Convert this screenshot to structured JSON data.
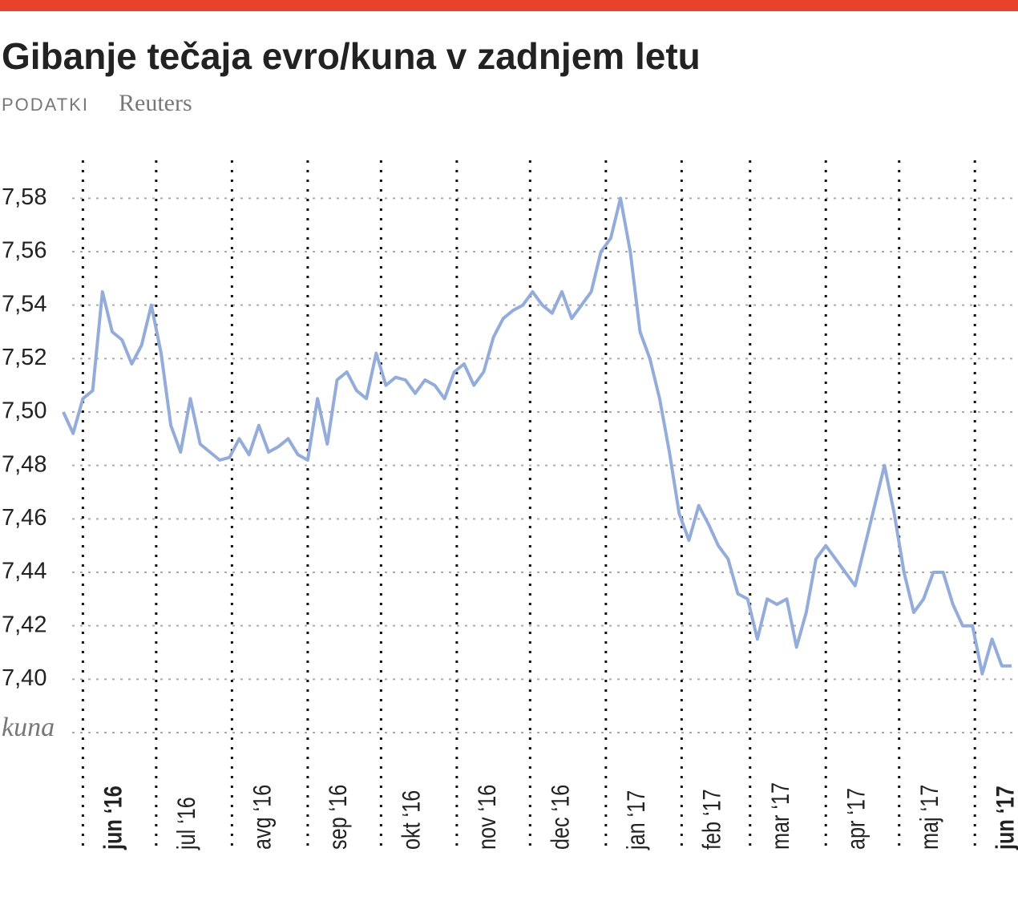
{
  "chart_data": {
    "type": "line",
    "title": "Gibanje tečaja evro/kuna v zadnjem letu",
    "source_label": "PODATKI",
    "source": "Reuters",
    "y_axis_label": "kuna",
    "xlim": [
      "2016-05-24",
      "2017-06-17"
    ],
    "ylim": [
      7.38,
      7.59
    ],
    "yticks": [
      {
        "value": 7.4,
        "label": "7,40"
      },
      {
        "value": 7.42,
        "label": "7,42"
      },
      {
        "value": 7.44,
        "label": "7,44"
      },
      {
        "value": 7.46,
        "label": "7,46"
      },
      {
        "value": 7.48,
        "label": "7,48"
      },
      {
        "value": 7.5,
        "label": "7,50"
      },
      {
        "value": 7.52,
        "label": "7,52"
      },
      {
        "value": 7.54,
        "label": "7,54"
      },
      {
        "value": 7.56,
        "label": "7,56"
      },
      {
        "value": 7.58,
        "label": "7,58"
      }
    ],
    "xticks": [
      {
        "value": "2016-06-01",
        "label": "jun ‘16"
      },
      {
        "value": "2016-07-01",
        "label": "jul ‘16"
      },
      {
        "value": "2016-08-01",
        "label": "avg ‘16"
      },
      {
        "value": "2016-09-01",
        "label": "sep ‘16"
      },
      {
        "value": "2016-10-01",
        "label": "okt ‘16"
      },
      {
        "value": "2016-11-01",
        "label": "nov ‘16"
      },
      {
        "value": "2016-12-01",
        "label": "dec ‘16"
      },
      {
        "value": "2017-01-01",
        "label": "jan ‘17"
      },
      {
        "value": "2017-02-01",
        "label": "feb ‘17"
      },
      {
        "value": "2017-03-01",
        "label": "mar ‘17"
      },
      {
        "value": "2017-04-01",
        "label": "apr ‘17"
      },
      {
        "value": "2017-05-01",
        "label": "maj ‘17"
      },
      {
        "value": "2017-06-01",
        "label": "jun ‘17"
      }
    ],
    "grid": true,
    "series": [
      {
        "name": "evro/kuna",
        "color": "#93acd9",
        "x": [
          "2016-05-24",
          "2016-05-28",
          "2016-06-01",
          "2016-06-05",
          "2016-06-09",
          "2016-06-13",
          "2016-06-17",
          "2016-06-21",
          "2016-06-25",
          "2016-06-29",
          "2016-07-03",
          "2016-07-07",
          "2016-07-11",
          "2016-07-15",
          "2016-07-19",
          "2016-07-23",
          "2016-07-27",
          "2016-07-31",
          "2016-08-04",
          "2016-08-08",
          "2016-08-12",
          "2016-08-16",
          "2016-08-20",
          "2016-08-24",
          "2016-08-28",
          "2016-09-01",
          "2016-09-05",
          "2016-09-09",
          "2016-09-13",
          "2016-09-17",
          "2016-09-21",
          "2016-09-25",
          "2016-09-29",
          "2016-10-03",
          "2016-10-07",
          "2016-10-11",
          "2016-10-15",
          "2016-10-19",
          "2016-10-23",
          "2016-10-27",
          "2016-10-31",
          "2016-11-04",
          "2016-11-08",
          "2016-11-12",
          "2016-11-16",
          "2016-11-20",
          "2016-11-24",
          "2016-11-28",
          "2016-12-02",
          "2016-12-06",
          "2016-12-10",
          "2016-12-14",
          "2016-12-18",
          "2016-12-22",
          "2016-12-26",
          "2016-12-30",
          "2017-01-03",
          "2017-01-07",
          "2017-01-11",
          "2017-01-15",
          "2017-01-19",
          "2017-01-23",
          "2017-01-27",
          "2017-01-31",
          "2017-02-04",
          "2017-02-08",
          "2017-02-12",
          "2017-02-16",
          "2017-02-20",
          "2017-02-24",
          "2017-02-28",
          "2017-03-04",
          "2017-03-08",
          "2017-03-12",
          "2017-03-16",
          "2017-03-20",
          "2017-03-24",
          "2017-03-28",
          "2017-04-01",
          "2017-04-05",
          "2017-04-09",
          "2017-04-13",
          "2017-04-17",
          "2017-04-21",
          "2017-04-25",
          "2017-04-29",
          "2017-05-03",
          "2017-05-07",
          "2017-05-11",
          "2017-05-15",
          "2017-05-19",
          "2017-05-23",
          "2017-05-27",
          "2017-05-31",
          "2017-06-04",
          "2017-06-08",
          "2017-06-12",
          "2017-06-16"
        ],
        "values": [
          7.5,
          7.492,
          7.505,
          7.508,
          7.545,
          7.53,
          7.527,
          7.518,
          7.525,
          7.54,
          7.522,
          7.495,
          7.485,
          7.505,
          7.488,
          7.485,
          7.482,
          7.483,
          7.49,
          7.484,
          7.495,
          7.485,
          7.487,
          7.49,
          7.484,
          7.482,
          7.505,
          7.488,
          7.512,
          7.515,
          7.508,
          7.505,
          7.522,
          7.51,
          7.513,
          7.512,
          7.507,
          7.512,
          7.51,
          7.505,
          7.515,
          7.518,
          7.51,
          7.515,
          7.528,
          7.535,
          7.538,
          7.54,
          7.545,
          7.54,
          7.537,
          7.545,
          7.535,
          7.54,
          7.545,
          7.56,
          7.565,
          7.58,
          7.56,
          7.53,
          7.52,
          7.505,
          7.485,
          7.462,
          7.452,
          7.465,
          7.458,
          7.45,
          7.445,
          7.432,
          7.43,
          7.415,
          7.43,
          7.428,
          7.43,
          7.412,
          7.425,
          7.445,
          7.45,
          7.445,
          7.44,
          7.435,
          7.45,
          7.465,
          7.48,
          7.462,
          7.44,
          7.425,
          7.43,
          7.44,
          7.44,
          7.428,
          7.42,
          7.42,
          7.402,
          7.415,
          7.405,
          7.405
        ]
      }
    ]
  }
}
